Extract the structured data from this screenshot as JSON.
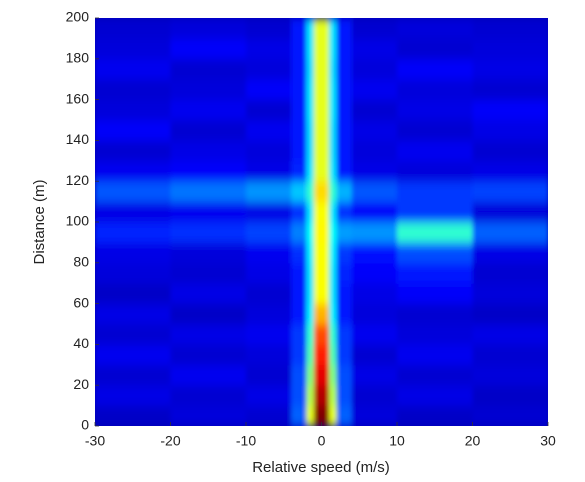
{
  "chart_data": {
    "type": "heatmap",
    "xlabel": "Relative speed (m/s)",
    "ylabel": "Distance (m)",
    "colormap": "jet",
    "xlim": [
      -30,
      30
    ],
    "ylim": [
      0,
      200
    ],
    "xticks": [
      -30,
      -20,
      -10,
      0,
      10,
      20,
      30
    ],
    "yticks": [
      0,
      20,
      40,
      60,
      80,
      100,
      120,
      140,
      160,
      180,
      200
    ],
    "xbins": [
      -30,
      -20,
      -10,
      -4,
      -2,
      -1,
      1,
      2,
      4,
      10,
      20,
      30
    ],
    "ybins": [
      0,
      10,
      20,
      30,
      40,
      50,
      60,
      70,
      80,
      90,
      100,
      110,
      120,
      130,
      140,
      150,
      160,
      170,
      180,
      190,
      200
    ],
    "values": [
      [
        0.07,
        0.09,
        0.08,
        0.22,
        0.6,
        1.0,
        0.6,
        0.22,
        0.09,
        0.07,
        0.08
      ],
      [
        0.1,
        0.08,
        0.1,
        0.2,
        0.55,
        0.95,
        0.55,
        0.2,
        0.08,
        0.1,
        0.07
      ],
      [
        0.08,
        0.11,
        0.08,
        0.2,
        0.5,
        0.9,
        0.5,
        0.2,
        0.1,
        0.08,
        0.09
      ],
      [
        0.11,
        0.08,
        0.09,
        0.18,
        0.45,
        0.85,
        0.45,
        0.18,
        0.08,
        0.11,
        0.08
      ],
      [
        0.08,
        0.1,
        0.11,
        0.18,
        0.42,
        0.8,
        0.42,
        0.18,
        0.11,
        0.09,
        0.1
      ],
      [
        0.1,
        0.07,
        0.09,
        0.15,
        0.36,
        0.7,
        0.36,
        0.15,
        0.09,
        0.08,
        0.07
      ],
      [
        0.07,
        0.1,
        0.08,
        0.15,
        0.35,
        0.62,
        0.35,
        0.15,
        0.1,
        0.12,
        0.09
      ],
      [
        0.09,
        0.08,
        0.1,
        0.15,
        0.35,
        0.62,
        0.35,
        0.16,
        0.12,
        0.15,
        0.08
      ],
      [
        0.1,
        0.09,
        0.11,
        0.17,
        0.36,
        0.62,
        0.36,
        0.18,
        0.14,
        0.2,
        0.1
      ],
      [
        0.16,
        0.17,
        0.19,
        0.25,
        0.38,
        0.63,
        0.38,
        0.28,
        0.27,
        0.42,
        0.22
      ],
      [
        0.1,
        0.11,
        0.1,
        0.17,
        0.35,
        0.62,
        0.35,
        0.17,
        0.12,
        0.18,
        0.09
      ],
      [
        0.21,
        0.24,
        0.27,
        0.32,
        0.42,
        0.66,
        0.42,
        0.3,
        0.21,
        0.18,
        0.19
      ],
      [
        0.11,
        0.12,
        0.1,
        0.16,
        0.35,
        0.6,
        0.35,
        0.15,
        0.1,
        0.09,
        0.1
      ],
      [
        0.08,
        0.1,
        0.09,
        0.15,
        0.34,
        0.6,
        0.34,
        0.15,
        0.09,
        0.11,
        0.08
      ],
      [
        0.12,
        0.08,
        0.11,
        0.15,
        0.34,
        0.6,
        0.34,
        0.15,
        0.1,
        0.08,
        0.1
      ],
      [
        0.09,
        0.11,
        0.08,
        0.15,
        0.35,
        0.6,
        0.35,
        0.15,
        0.08,
        0.1,
        0.12
      ],
      [
        0.08,
        0.09,
        0.12,
        0.15,
        0.35,
        0.6,
        0.35,
        0.15,
        0.11,
        0.09,
        0.08
      ],
      [
        0.11,
        0.08,
        0.09,
        0.15,
        0.34,
        0.6,
        0.34,
        0.15,
        0.09,
        0.12,
        0.1
      ],
      [
        0.09,
        0.12,
        0.1,
        0.15,
        0.35,
        0.6,
        0.35,
        0.15,
        0.1,
        0.08,
        0.09
      ],
      [
        0.08,
        0.09,
        0.08,
        0.15,
        0.35,
        0.6,
        0.35,
        0.15,
        0.08,
        0.09,
        0.08
      ]
    ]
  }
}
